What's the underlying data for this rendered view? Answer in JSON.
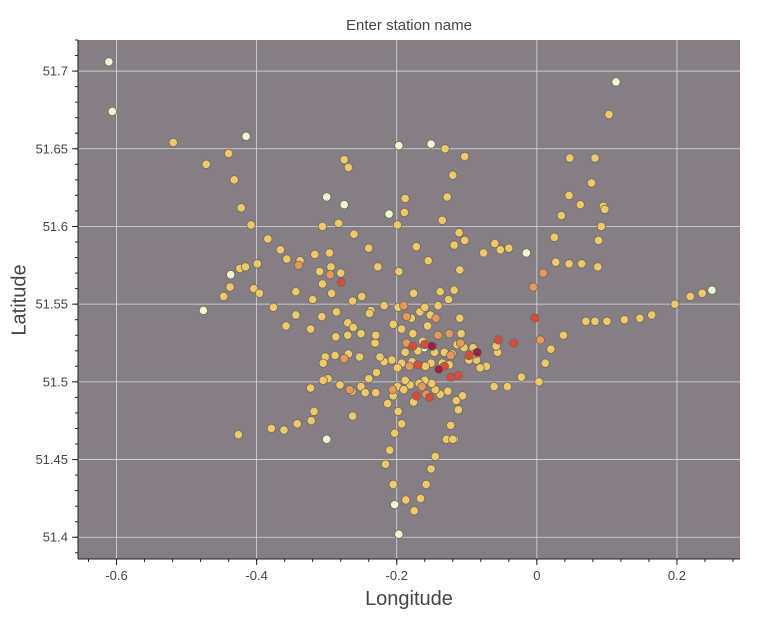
{
  "chart_data": {
    "type": "scatter",
    "title": "Enter station name",
    "xlabel": "Longitude",
    "ylabel": "Latitude",
    "xlim": [
      -0.655,
      0.29
    ],
    "ylim": [
      51.386,
      51.72
    ],
    "x_ticks": [
      -0.6,
      -0.4,
      -0.2,
      0,
      0.2
    ],
    "x_tick_labels": [
      "-0.6",
      "-0.4",
      "-0.2",
      "0",
      "0.2"
    ],
    "y_ticks": [
      51.4,
      51.45,
      51.5,
      51.55,
      51.6,
      51.65,
      51.7
    ],
    "y_tick_labels": [
      "51.4",
      "51.45",
      "51.5",
      "51.55",
      "51.6",
      "51.65",
      "51.7"
    ],
    "grid": true,
    "plot_background": "#857e85",
    "grid_color": "#d9d9d9",
    "point_stroke": "#6f6a5e",
    "color_levels": [
      "#eef7cf",
      "#eec869",
      "#e7985a",
      "#d94b3c",
      "#9e1f3e"
    ],
    "points": [
      [
        -0.611,
        51.706,
        0
      ],
      [
        -0.606,
        51.674,
        0
      ],
      [
        -0.415,
        51.658,
        0
      ],
      [
        -0.197,
        51.652,
        0
      ],
      [
        -0.151,
        51.653,
        0
      ],
      [
        0.113,
        51.693,
        0
      ],
      [
        -0.3,
        51.619,
        0
      ],
      [
        -0.275,
        51.614,
        0
      ],
      [
        -0.211,
        51.608,
        0
      ],
      [
        -0.476,
        51.546,
        0
      ],
      [
        -0.437,
        51.569,
        0
      ],
      [
        0.25,
        51.559,
        0
      ],
      [
        -0.015,
        51.583,
        0
      ],
      [
        -0.3,
        51.463,
        0
      ],
      [
        -0.118,
        51.463,
        0
      ],
      [
        -0.203,
        51.421,
        0
      ],
      [
        -0.197,
        51.402,
        0
      ],
      [
        -0.161,
        51.522,
        0
      ],
      [
        -0.519,
        51.654,
        1
      ],
      [
        -0.472,
        51.64,
        1
      ],
      [
        -0.44,
        51.647,
        1
      ],
      [
        -0.432,
        51.63,
        1
      ],
      [
        -0.422,
        51.612,
        1
      ],
      [
        -0.408,
        51.601,
        1
      ],
      [
        -0.384,
        51.592,
        1
      ],
      [
        -0.366,
        51.585,
        1
      ],
      [
        -0.357,
        51.579,
        1
      ],
      [
        -0.338,
        51.578,
        1
      ],
      [
        -0.317,
        51.582,
        1
      ],
      [
        -0.31,
        51.571,
        1
      ],
      [
        -0.294,
        51.574,
        1
      ],
      [
        -0.399,
        51.576,
        1
      ],
      [
        -0.424,
        51.573,
        1
      ],
      [
        -0.416,
        51.574,
        1
      ],
      [
        -0.438,
        51.561,
        1
      ],
      [
        -0.447,
        51.555,
        1
      ],
      [
        -0.426,
        51.466,
        1
      ],
      [
        -0.404,
        51.56,
        1
      ],
      [
        -0.396,
        51.557,
        1
      ],
      [
        -0.376,
        51.548,
        1
      ],
      [
        -0.344,
        51.558,
        1
      ],
      [
        -0.32,
        51.553,
        1
      ],
      [
        -0.306,
        51.563,
        1
      ],
      [
        -0.293,
        51.557,
        1
      ],
      [
        -0.286,
        51.545,
        1
      ],
      [
        -0.307,
        51.542,
        1
      ],
      [
        -0.323,
        51.534,
        1
      ],
      [
        -0.344,
        51.543,
        1
      ],
      [
        -0.358,
        51.536,
        1
      ],
      [
        -0.27,
        51.538,
        1
      ],
      [
        -0.262,
        51.535,
        1
      ],
      [
        -0.251,
        51.531,
        1
      ],
      [
        -0.231,
        51.525,
        1
      ],
      [
        -0.218,
        51.549,
        1
      ],
      [
        -0.198,
        51.548,
        1
      ],
      [
        -0.193,
        51.534,
        1
      ],
      [
        -0.179,
        51.541,
        1
      ],
      [
        -0.176,
        51.557,
        1
      ],
      [
        -0.167,
        51.545,
        1
      ],
      [
        -0.16,
        51.548,
        1
      ],
      [
        -0.156,
        51.536,
        1
      ],
      [
        -0.141,
        51.549,
        1
      ],
      [
        -0.138,
        51.558,
        1
      ],
      [
        -0.126,
        51.553,
        1
      ],
      [
        -0.118,
        51.559,
        1
      ],
      [
        -0.11,
        51.572,
        1
      ],
      [
        -0.118,
        51.588,
        1
      ],
      [
        -0.135,
        51.604,
        1
      ],
      [
        -0.128,
        51.619,
        1
      ],
      [
        -0.12,
        51.633,
        1
      ],
      [
        -0.131,
        51.65,
        1
      ],
      [
        -0.103,
        51.645,
        1
      ],
      [
        -0.076,
        51.583,
        1
      ],
      [
        -0.06,
        51.589,
        1
      ],
      [
        -0.04,
        51.586,
        1
      ],
      [
        -0.052,
        51.585,
        1
      ],
      [
        0.025,
        51.593,
        1
      ],
      [
        0.035,
        51.607,
        1
      ],
      [
        0.046,
        51.62,
        1
      ],
      [
        0.062,
        51.614,
        1
      ],
      [
        0.078,
        51.628,
        1
      ],
      [
        0.047,
        51.644,
        1
      ],
      [
        0.083,
        51.644,
        1
      ],
      [
        0.095,
        51.613,
        1
      ],
      [
        0.103,
        51.672,
        1
      ],
      [
        0.027,
        51.577,
        1
      ],
      [
        0.046,
        51.576,
        1
      ],
      [
        0.064,
        51.576,
        1
      ],
      [
        0.087,
        51.574,
        1
      ],
      [
        0.088,
        51.591,
        1
      ],
      [
        0.092,
        51.6,
        1
      ],
      [
        0.097,
        51.611,
        1
      ],
      [
        0.07,
        51.539,
        1
      ],
      [
        0.083,
        51.539,
        1
      ],
      [
        0.1,
        51.539,
        1
      ],
      [
        0.125,
        51.54,
        1
      ],
      [
        0.147,
        51.541,
        1
      ],
      [
        0.164,
        51.543,
        1
      ],
      [
        0.197,
        51.55,
        1
      ],
      [
        0.219,
        51.555,
        1
      ],
      [
        0.236,
        51.557,
        1
      ],
      [
        0.038,
        51.53,
        1
      ],
      [
        0.02,
        51.521,
        1
      ],
      [
        0.012,
        51.512,
        1
      ],
      [
        -0.022,
        51.503,
        1
      ],
      [
        0.003,
        51.5,
        1
      ],
      [
        -0.042,
        51.497,
        1
      ],
      [
        -0.061,
        51.497,
        1
      ],
      [
        -0.056,
        51.519,
        1
      ],
      [
        -0.058,
        51.523,
        1
      ],
      [
        -0.072,
        51.51,
        1
      ],
      [
        -0.081,
        51.509,
        1
      ],
      [
        -0.086,
        51.514,
        1
      ],
      [
        -0.091,
        51.522,
        1
      ],
      [
        -0.097,
        51.514,
        1
      ],
      [
        -0.104,
        51.522,
        1
      ],
      [
        -0.108,
        51.531,
        1
      ],
      [
        -0.114,
        51.524,
        1
      ],
      [
        -0.121,
        51.518,
        1
      ],
      [
        -0.125,
        51.511,
        1
      ],
      [
        -0.132,
        51.519,
        1
      ],
      [
        -0.135,
        51.512,
        1
      ],
      [
        -0.146,
        51.519,
        1
      ],
      [
        -0.151,
        51.512,
        1
      ],
      [
        -0.159,
        51.51,
        1
      ],
      [
        -0.17,
        51.52,
        1
      ],
      [
        -0.178,
        51.513,
        1
      ],
      [
        -0.188,
        51.519,
        1
      ],
      [
        -0.193,
        51.512,
        1
      ],
      [
        -0.199,
        51.509,
        1
      ],
      [
        -0.207,
        51.514,
        1
      ],
      [
        -0.218,
        51.513,
        1
      ],
      [
        -0.224,
        51.516,
        1
      ],
      [
        -0.229,
        51.506,
        1
      ],
      [
        -0.24,
        51.502,
        1
      ],
      [
        -0.251,
        51.497,
        1
      ],
      [
        -0.264,
        51.494,
        1
      ],
      [
        -0.281,
        51.498,
        1
      ],
      [
        -0.298,
        51.502,
        1
      ],
      [
        -0.305,
        51.501,
        1
      ],
      [
        -0.323,
        51.496,
        1
      ],
      [
        -0.302,
        51.516,
        1
      ],
      [
        -0.288,
        51.517,
        1
      ],
      [
        -0.269,
        51.518,
        1
      ],
      [
        -0.27,
        51.53,
        1
      ],
      [
        -0.253,
        51.516,
        1
      ],
      [
        -0.23,
        51.493,
        1
      ],
      [
        -0.245,
        51.493,
        1
      ],
      [
        -0.263,
        51.478,
        1
      ],
      [
        -0.318,
        51.481,
        1
      ],
      [
        -0.322,
        51.475,
        1
      ],
      [
        -0.342,
        51.473,
        1
      ],
      [
        -0.361,
        51.469,
        1
      ],
      [
        -0.379,
        51.47,
        1
      ],
      [
        -0.199,
        51.497,
        1
      ],
      [
        -0.205,
        51.491,
        1
      ],
      [
        -0.213,
        51.486,
        1
      ],
      [
        -0.198,
        51.481,
        1
      ],
      [
        -0.193,
        51.473,
        1
      ],
      [
        -0.203,
        51.467,
        1
      ],
      [
        -0.21,
        51.456,
        1
      ],
      [
        -0.216,
        51.447,
        1
      ],
      [
        -0.205,
        51.434,
        1
      ],
      [
        -0.187,
        51.424,
        1
      ],
      [
        -0.175,
        51.417,
        1
      ],
      [
        -0.166,
        51.425,
        1
      ],
      [
        -0.158,
        51.434,
        1
      ],
      [
        -0.151,
        51.444,
        1
      ],
      [
        -0.145,
        51.452,
        1
      ],
      [
        -0.129,
        51.463,
        1
      ],
      [
        -0.12,
        51.463,
        1
      ],
      [
        -0.123,
        51.472,
        1
      ],
      [
        -0.112,
        51.482,
        1
      ],
      [
        -0.106,
        51.491,
        1
      ],
      [
        -0.115,
        51.488,
        1
      ],
      [
        -0.127,
        51.494,
        1
      ],
      [
        -0.138,
        51.492,
        1
      ],
      [
        -0.145,
        51.495,
        1
      ],
      [
        -0.15,
        51.499,
        1
      ],
      [
        -0.16,
        51.501,
        1
      ],
      [
        -0.168,
        51.499,
        1
      ],
      [
        -0.181,
        51.498,
        1
      ],
      [
        -0.19,
        51.495,
        1
      ],
      [
        -0.176,
        51.487,
        1
      ],
      [
        -0.188,
        51.501,
        1
      ],
      [
        -0.23,
        51.53,
        1
      ],
      [
        -0.25,
        51.555,
        1
      ],
      [
        -0.263,
        51.552,
        1
      ],
      [
        -0.28,
        51.57,
        1
      ],
      [
        -0.296,
        51.583,
        1
      ],
      [
        -0.306,
        51.6,
        1
      ],
      [
        -0.283,
        51.602,
        1
      ],
      [
        -0.261,
        51.595,
        1
      ],
      [
        -0.24,
        51.586,
        1
      ],
      [
        -0.227,
        51.574,
        1
      ],
      [
        -0.197,
        51.571,
        1
      ],
      [
        -0.189,
        51.609,
        1
      ],
      [
        -0.188,
        51.618,
        1
      ],
      [
        -0.199,
        51.601,
        1
      ],
      [
        -0.172,
        51.587,
        1
      ],
      [
        -0.155,
        51.578,
        1
      ],
      [
        -0.275,
        51.643,
        1
      ],
      [
        -0.269,
        51.638,
        1
      ],
      [
        -0.111,
        51.596,
        1
      ],
      [
        -0.103,
        51.591,
        1
      ],
      [
        -0.11,
        51.541,
        1
      ],
      [
        -0.152,
        51.543,
        1
      ],
      [
        -0.163,
        51.526,
        1
      ],
      [
        -0.177,
        51.531,
        1
      ],
      [
        -0.205,
        51.537,
        1
      ],
      [
        -0.237,
        51.546,
        1
      ],
      [
        -0.287,
        51.529,
        1
      ],
      [
        -0.305,
        51.512,
        1
      ],
      [
        -0.239,
        51.544,
        1
      ],
      [
        -0.34,
        51.575,
        2
      ],
      [
        -0.295,
        51.569,
        2
      ],
      [
        -0.186,
        51.525,
        2
      ],
      [
        -0.182,
        51.51,
        2
      ],
      [
        -0.141,
        51.53,
        2
      ],
      [
        -0.125,
        51.531,
        2
      ],
      [
        -0.144,
        51.541,
        2
      ],
      [
        -0.158,
        51.492,
        2
      ],
      [
        -0.206,
        51.495,
        2
      ],
      [
        -0.275,
        51.515,
        2
      ],
      [
        -0.267,
        51.495,
        2
      ],
      [
        -0.109,
        51.525,
        2
      ],
      [
        -0.089,
        51.518,
        2
      ],
      [
        0.009,
        51.57,
        2
      ],
      [
        -0.005,
        51.561,
        2
      ],
      [
        0.005,
        51.527,
        2
      ],
      [
        -0.186,
        51.542,
        2
      ],
      [
        -0.123,
        51.517,
        2
      ],
      [
        -0.19,
        51.549,
        2
      ],
      [
        -0.164,
        51.497,
        2
      ],
      [
        -0.279,
        51.564,
        3
      ],
      [
        -0.177,
        51.523,
        3
      ],
      [
        -0.16,
        51.524,
        3
      ],
      [
        -0.149,
        51.523,
        3
      ],
      [
        -0.17,
        51.511,
        3
      ],
      [
        -0.132,
        51.51,
        3
      ],
      [
        -0.123,
        51.503,
        3
      ],
      [
        -0.112,
        51.504,
        3
      ],
      [
        -0.153,
        51.49,
        3
      ],
      [
        -0.172,
        51.491,
        3
      ],
      [
        -0.055,
        51.527,
        3
      ],
      [
        -0.033,
        51.525,
        3
      ],
      [
        -0.003,
        51.541,
        3
      ],
      [
        -0.097,
        51.517,
        3
      ],
      [
        -0.15,
        51.523,
        4
      ],
      [
        -0.14,
        51.508,
        4
      ],
      [
        -0.085,
        51.519,
        4
      ]
    ]
  }
}
